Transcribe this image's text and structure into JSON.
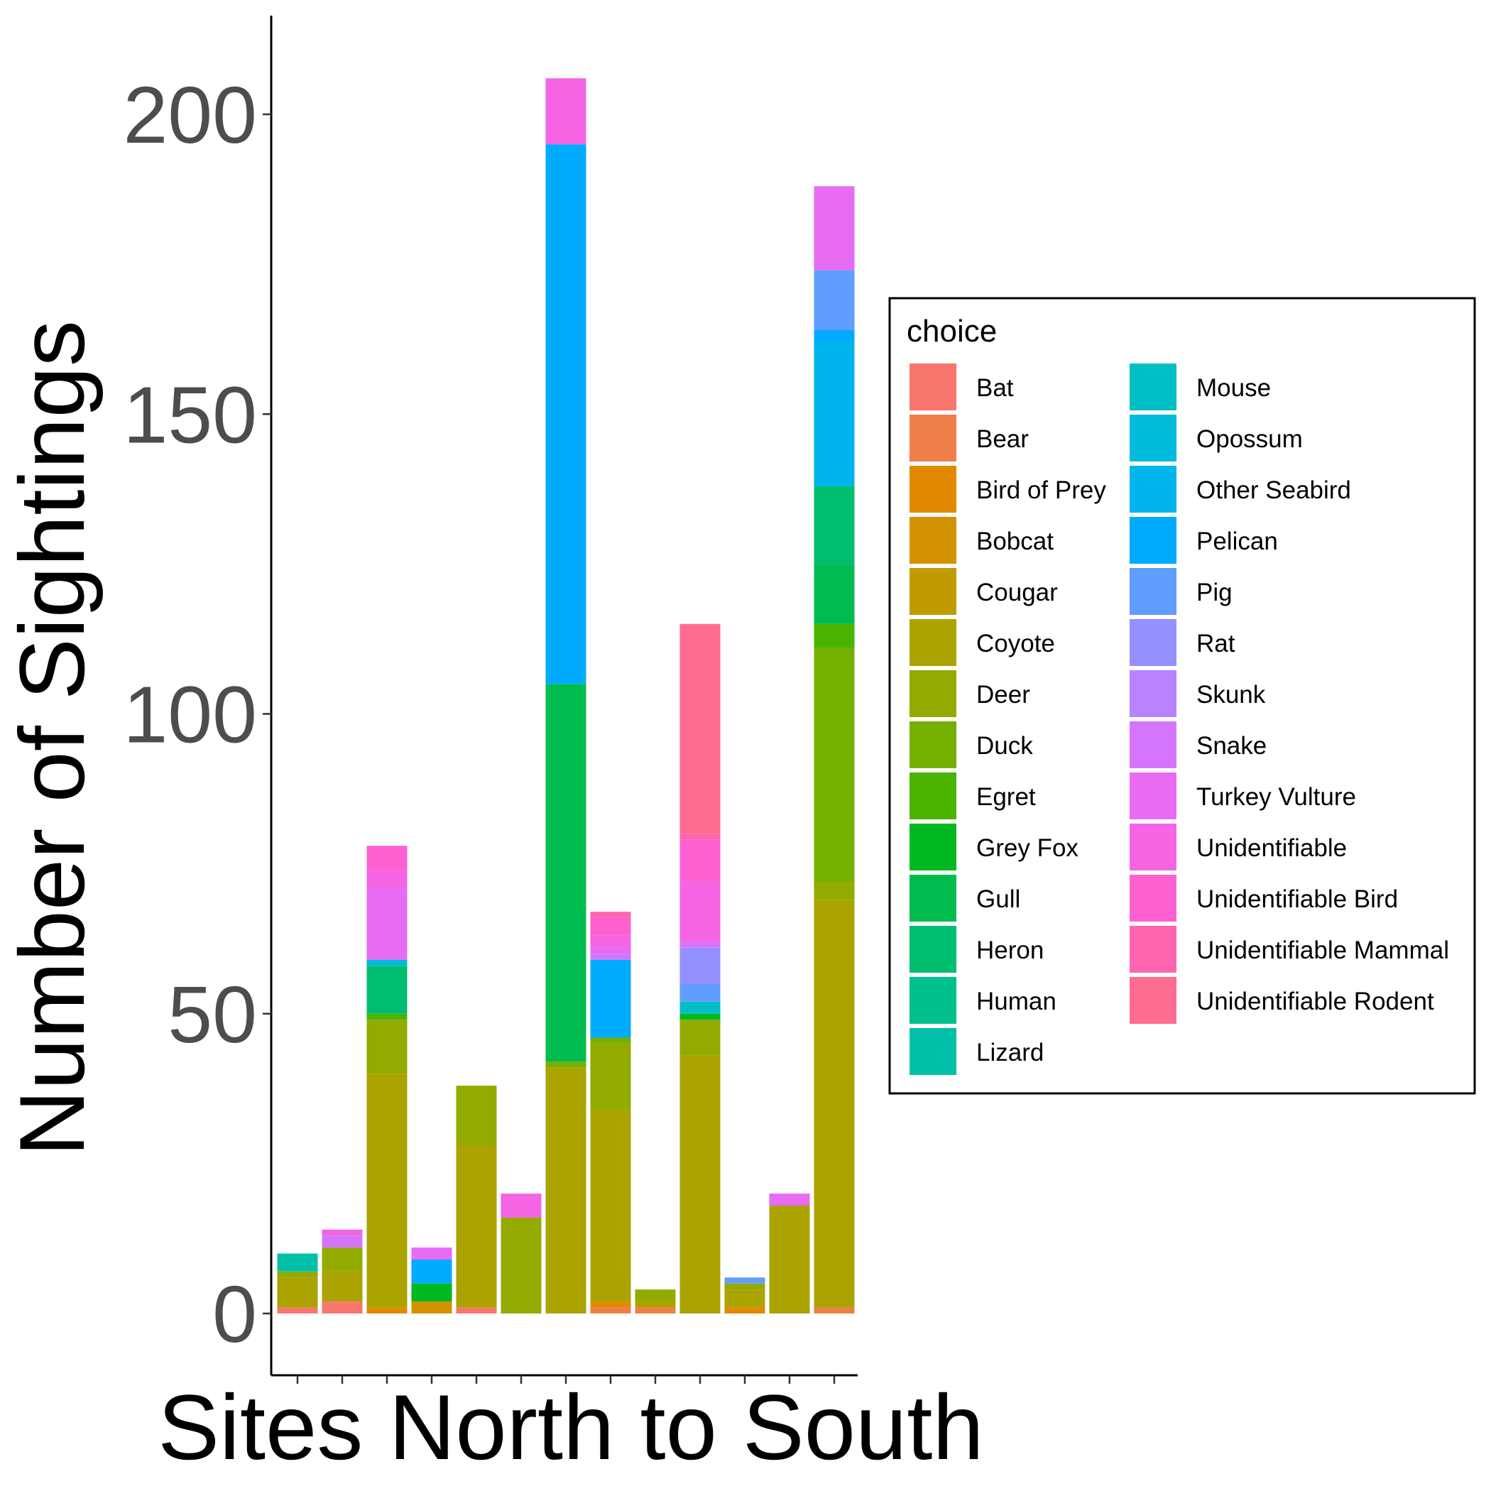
{
  "chart_data": {
    "type": "bar",
    "stacked": true,
    "title": "",
    "xlabel": "Sites North to South",
    "ylabel": "Number of Sightings",
    "ylim": [
      -10,
      215
    ],
    "yticks": [
      0,
      50,
      100,
      150,
      200
    ],
    "grid": false,
    "legend": {
      "title": "choice",
      "placement": "right",
      "columns": 2
    },
    "categories": [
      "",
      "",
      "",
      "",
      "",
      "",
      "",
      "",
      "",
      "",
      "",
      "",
      ""
    ],
    "series": [
      {
        "name": "Bat",
        "color": "#F8766D",
        "values": [
          1,
          2,
          0,
          0,
          1,
          0,
          0,
          0,
          0,
          0,
          0,
          0,
          0
        ]
      },
      {
        "name": "Bear",
        "color": "#EF7F49",
        "values": [
          0,
          0,
          0,
          0,
          0,
          0,
          0,
          1,
          1,
          0,
          0,
          0,
          1
        ]
      },
      {
        "name": "Bird of Prey",
        "color": "#E38900",
        "values": [
          0,
          0,
          1,
          0,
          0,
          0,
          0,
          1,
          0,
          0,
          1,
          0,
          0
        ]
      },
      {
        "name": "Bobcat",
        "color": "#D39200",
        "values": [
          0,
          0,
          0,
          2,
          0,
          0,
          0,
          0,
          0,
          0,
          0,
          0,
          0
        ]
      },
      {
        "name": "Cougar",
        "color": "#C09B00",
        "values": [
          0,
          0,
          0,
          0,
          0,
          0,
          0,
          0,
          0,
          0,
          0,
          0,
          0
        ]
      },
      {
        "name": "Coyote",
        "color": "#ABA300",
        "values": [
          5,
          5,
          39,
          0,
          27,
          0,
          41,
          32,
          1,
          43,
          3,
          18,
          68
        ]
      },
      {
        "name": "Deer",
        "color": "#93AA00",
        "values": [
          1,
          4,
          9,
          0,
          10,
          16,
          0,
          11,
          2,
          6,
          1,
          0,
          3
        ]
      },
      {
        "name": "Duck",
        "color": "#75AF00",
        "values": [
          0,
          0,
          0,
          0,
          0,
          0,
          1,
          1,
          0,
          0,
          0,
          0,
          39
        ]
      },
      {
        "name": "Egret",
        "color": "#4BB400",
        "values": [
          0,
          0,
          1,
          0,
          0,
          0,
          0,
          0,
          0,
          0,
          0,
          0,
          4
        ]
      },
      {
        "name": "Grey Fox",
        "color": "#00B81F",
        "values": [
          0,
          0,
          0,
          3,
          0,
          0,
          0,
          0,
          0,
          1,
          0,
          0,
          0
        ]
      },
      {
        "name": "Gull",
        "color": "#00BB4E",
        "values": [
          0,
          0,
          0,
          0,
          0,
          0,
          63,
          0,
          0,
          0,
          0,
          0,
          10
        ]
      },
      {
        "name": "Heron",
        "color": "#00BE70",
        "values": [
          0,
          0,
          8,
          0,
          0,
          0,
          0,
          0,
          0,
          0,
          0,
          0,
          13
        ]
      },
      {
        "name": "Human",
        "color": "#00C08E",
        "values": [
          0,
          0,
          0,
          0,
          0,
          0,
          0,
          0,
          0,
          0,
          0,
          0,
          0
        ]
      },
      {
        "name": "Lizard",
        "color": "#00C0AA",
        "values": [
          3,
          0,
          0,
          0,
          0,
          0,
          0,
          0,
          0,
          0,
          0,
          0,
          0
        ]
      },
      {
        "name": "Mouse",
        "color": "#00BFC4",
        "values": [
          0,
          0,
          0,
          0,
          0,
          0,
          0,
          0,
          0,
          2,
          0,
          0,
          0
        ]
      },
      {
        "name": "Opossum",
        "color": "#00BBDB",
        "values": [
          0,
          0,
          1,
          0,
          0,
          0,
          0,
          0,
          0,
          0,
          0,
          0,
          0
        ]
      },
      {
        "name": "Other Seabird",
        "color": "#00B5EE",
        "values": [
          0,
          0,
          0,
          0,
          0,
          0,
          0,
          0,
          0,
          0,
          0,
          0,
          24
        ]
      },
      {
        "name": "Pelican",
        "color": "#00ABFD",
        "values": [
          0,
          0,
          0,
          4,
          0,
          0,
          90,
          13,
          0,
          0,
          0,
          0,
          2
        ]
      },
      {
        "name": "Pig",
        "color": "#619CFF",
        "values": [
          0,
          0,
          0,
          0,
          0,
          0,
          0,
          0,
          0,
          3,
          1,
          0,
          10
        ]
      },
      {
        "name": "Rat",
        "color": "#9590FF",
        "values": [
          0,
          0,
          0,
          0,
          0,
          0,
          0,
          0,
          0,
          6,
          0,
          0,
          0
        ]
      },
      {
        "name": "Skunk",
        "color": "#B983FF",
        "values": [
          0,
          0,
          0,
          0,
          0,
          0,
          0,
          0,
          0,
          0,
          0,
          0,
          0
        ]
      },
      {
        "name": "Snake",
        "color": "#D575FE",
        "values": [
          0,
          2,
          0,
          0,
          0,
          0,
          0,
          1,
          0,
          1,
          0,
          0,
          0
        ]
      },
      {
        "name": "Turkey Vulture",
        "color": "#E76BF3",
        "values": [
          0,
          0,
          12,
          2,
          0,
          0,
          0,
          1,
          0,
          0,
          0,
          2,
          14
        ]
      },
      {
        "name": "Unidentifiable",
        "color": "#F564E3",
        "values": [
          0,
          1,
          3,
          0,
          0,
          4,
          11,
          2,
          0,
          10,
          0,
          0,
          0
        ]
      },
      {
        "name": "Unidentifiable Bird",
        "color": "#FD61D1",
        "values": [
          0,
          0,
          4,
          0,
          0,
          0,
          0,
          3,
          0,
          7,
          0,
          0,
          0
        ]
      },
      {
        "name": "Unidentifiable Mammal",
        "color": "#FF64B0",
        "values": [
          0,
          0,
          0,
          0,
          0,
          0,
          0,
          1,
          0,
          1,
          0,
          0,
          0
        ]
      },
      {
        "name": "Unidentifiable Rodent",
        "color": "#FF6C91",
        "values": [
          0,
          0,
          0,
          0,
          0,
          0,
          0,
          0,
          0,
          35,
          0,
          0,
          0
        ]
      }
    ]
  }
}
